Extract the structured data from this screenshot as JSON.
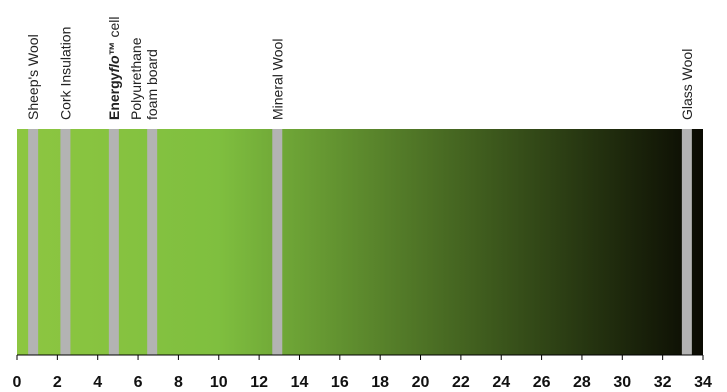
{
  "chart_data": {
    "type": "bar",
    "title": "",
    "xlabel": "",
    "ylabel": "",
    "xlim": [
      0,
      34
    ],
    "xticks": [
      "0",
      "2",
      "4",
      "6",
      "8",
      "10",
      "12",
      "14",
      "16",
      "18",
      "20",
      "22",
      "24",
      "26",
      "28",
      "30",
      "32",
      "34"
    ],
    "grid": false,
    "legend": "none",
    "gradient": {
      "colors": [
        "#8dc641",
        "#7fbf3f",
        "#0a0a02"
      ],
      "solid_until": 10,
      "end": 34
    },
    "marker_color": "#b3b3b3",
    "markers": [
      {
        "name": "Sheep's Wool",
        "x": 0.8,
        "lines": [
          [
            {
              "text": "Sheep's Wool"
            }
          ]
        ]
      },
      {
        "name": "Cork Insulation",
        "x": 2.4,
        "lines": [
          [
            {
              "text": "Cork Insulation"
            }
          ]
        ]
      },
      {
        "name": "Energyflo™ cell",
        "x": 4.8,
        "lines": [
          [
            {
              "text": "Energy",
              "style": "bold"
            },
            {
              "text": "flo",
              "style": "boldital"
            },
            {
              "text": "™",
              "style": "bold"
            },
            {
              "text": " cell"
            }
          ]
        ]
      },
      {
        "name": "Polyurethane foam board",
        "x": 6.7,
        "lines": [
          [
            {
              "text": "Polyurethane"
            }
          ],
          [
            {
              "text": "foam board"
            }
          ]
        ]
      },
      {
        "name": "Mineral Wool",
        "x": 12.9,
        "lines": [
          [
            {
              "text": "Mineral Wool"
            }
          ]
        ]
      },
      {
        "name": "Glass Wool",
        "x": 33.2,
        "lines": [
          [
            {
              "text": "Glass Wool"
            }
          ]
        ]
      }
    ]
  }
}
